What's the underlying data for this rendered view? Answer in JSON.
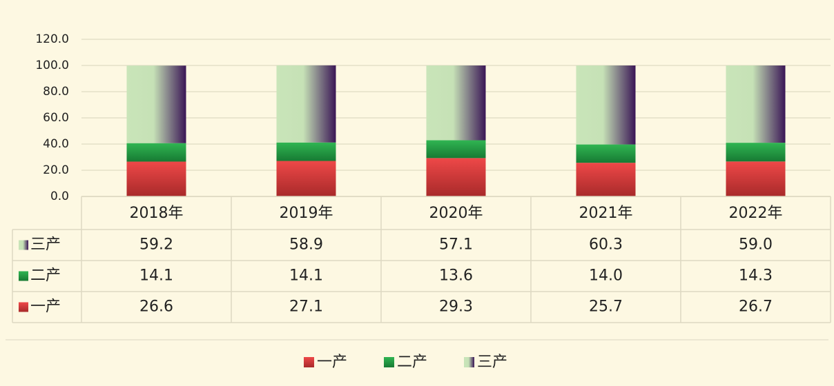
{
  "chart_data": {
    "type": "stacked_bar",
    "categories": [
      "2018年",
      "2019年",
      "2020年",
      "2021年",
      "2022年"
    ],
    "series": [
      {
        "name": "一产",
        "color": "#e23a3a",
        "values": [
          26.6,
          27.1,
          29.3,
          25.7,
          26.7
        ]
      },
      {
        "name": "二产",
        "color": "#22a447",
        "values": [
          14.1,
          14.1,
          13.6,
          14.0,
          14.3
        ],
        "value_labels": [
          "14.1",
          "14.1",
          "13.6",
          "14.0",
          "14.3"
        ]
      },
      {
        "name": "三产",
        "color": "#3a1656",
        "values": [
          59.2,
          58.9,
          57.1,
          60.3,
          59.0
        ],
        "value_labels": [
          "59.2",
          "58.9",
          "57.1",
          "60.3",
          "59.0"
        ]
      }
    ],
    "ylim": [
      0,
      120
    ],
    "yticks": [
      {
        "value": 0,
        "label": "0.0"
      },
      {
        "value": 20,
        "label": "20.0"
      },
      {
        "value": 40,
        "label": "40.0"
      },
      {
        "value": 60,
        "label": "60.0"
      },
      {
        "value": 80,
        "label": "80.0"
      },
      {
        "value": 100,
        "label": "100.0"
      },
      {
        "value": 120,
        "label": "120.0"
      }
    ],
    "grid": true,
    "legend": "bottom"
  }
}
